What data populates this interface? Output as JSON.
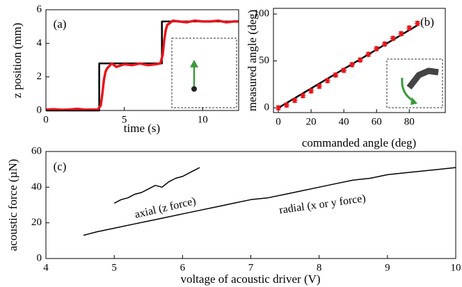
{
  "chart_data": [
    {
      "type": "line",
      "label": "(a)",
      "x_label": "time (s)",
      "y_label": "z position (mm)",
      "xlim": [
        0,
        12.3
      ],
      "xticks": [
        0,
        5,
        10
      ],
      "ylim": [
        0,
        6
      ],
      "yticks": [
        0,
        2,
        4,
        6
      ],
      "series": [
        {
          "color": "#000000",
          "x": [
            0,
            3.4,
            3.4,
            7.4,
            7.4,
            12.3
          ],
          "values": [
            0,
            0,
            2.8,
            2.8,
            5.3,
            5.3
          ]
        },
        {
          "color": "#e8141b",
          "x": [
            0,
            0.5,
            1,
            1.5,
            2,
            2.5,
            3,
            3.3,
            3.5,
            3.6,
            3.7,
            3.8,
            3.9,
            4.0,
            4.2,
            4.5,
            5,
            5.5,
            6,
            6.5,
            7,
            7.3,
            7.45,
            7.55,
            7.65,
            7.75,
            7.9,
            8.1,
            8.5,
            9,
            9.5,
            10,
            10.5,
            11,
            11.5,
            12,
            12.3
          ],
          "values": [
            0.05,
            0.08,
            0.04,
            0.06,
            0.1,
            0.05,
            0.06,
            0.05,
            0.3,
            1.0,
            1.8,
            2.3,
            2.5,
            2.6,
            2.8,
            2.6,
            2.75,
            2.7,
            2.8,
            2.7,
            2.75,
            2.8,
            3.3,
            4.2,
            4.8,
            5.1,
            5.2,
            5.35,
            5.3,
            5.25,
            5.35,
            5.3,
            5.3,
            5.35,
            5.25,
            5.3,
            5.3
          ]
        }
      ]
    },
    {
      "type": "scatter",
      "label": "(b)",
      "x_label": "commanded angle (deg)",
      "y_label": "measured angle (deg)",
      "xlim": [
        -3,
        102
      ],
      "xticks": [
        0,
        20,
        40,
        60,
        80
      ],
      "ylim": [
        -5,
        106
      ],
      "yticks": [
        0,
        50,
        100
      ],
      "color": "#e8141b",
      "x": [
        0,
        5,
        10,
        15,
        20,
        25,
        30,
        35,
        40,
        45,
        50,
        55,
        60,
        65,
        70,
        75,
        80,
        85
      ],
      "values": [
        0,
        3,
        8,
        13,
        18,
        23,
        29,
        35,
        40,
        46,
        51,
        57,
        63,
        68,
        74,
        79,
        85,
        90
      ],
      "errors": [
        2,
        2,
        2,
        2,
        2,
        2,
        2,
        2,
        2,
        2,
        2,
        2,
        2,
        2,
        2,
        2,
        2,
        2
      ],
      "fit": {
        "color": "#000000",
        "x": [
          0,
          85
        ],
        "values": [
          0,
          88
        ]
      }
    },
    {
      "type": "line",
      "label": "(c)",
      "x_label": "voltage of acoustic driver (V)",
      "y_label": "acoustic force (µN)",
      "xlim": [
        4,
        10
      ],
      "xticks": [
        4,
        5,
        6,
        7,
        8,
        9,
        10
      ],
      "ylim": [
        0,
        60
      ],
      "yticks": [
        0,
        20,
        40,
        60
      ],
      "annotations": [
        "axial (z force)",
        "radial (x or y force)"
      ],
      "series": [
        {
          "color": "#000000",
          "x": [
            5.0,
            5.1,
            5.2,
            5.3,
            5.4,
            5.5,
            5.6,
            5.7,
            5.8,
            5.9,
            6.0,
            6.1,
            6.2,
            6.25
          ],
          "values": [
            31,
            33,
            34,
            36,
            37,
            39,
            41,
            40,
            43,
            45,
            46,
            48,
            50,
            51
          ]
        },
        {
          "color": "#000000",
          "x": [
            4.55,
            4.75,
            5,
            5.25,
            5.5,
            5.75,
            6,
            6.25,
            6.5,
            6.75,
            7,
            7.25,
            7.5,
            7.75,
            8,
            8.25,
            8.5,
            8.75,
            9,
            9.25,
            9.5,
            9.75,
            10
          ],
          "values": [
            13,
            15,
            17,
            19,
            21,
            23,
            25,
            27,
            29,
            31,
            33,
            34,
            36,
            38,
            40,
            42,
            44,
            45,
            47,
            48,
            49,
            50,
            51
          ]
        }
      ]
    }
  ]
}
